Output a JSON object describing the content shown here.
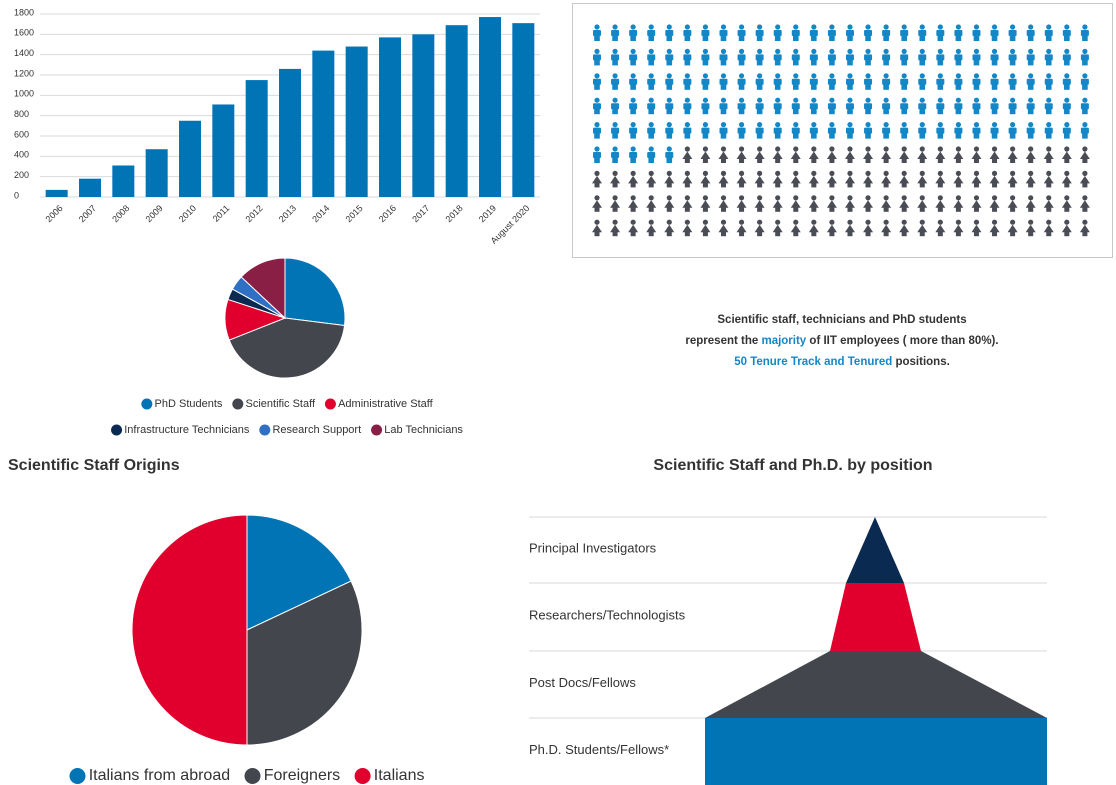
{
  "chart_data": [
    {
      "type": "bar",
      "categories": [
        "2006",
        "2007",
        "2008",
        "2009",
        "2010",
        "2011",
        "2012",
        "2013",
        "2014",
        "2015",
        "2016",
        "2017",
        "2018",
        "2019",
        "August 2020"
      ],
      "values": [
        70,
        180,
        310,
        470,
        750,
        910,
        1150,
        1260,
        1440,
        1480,
        1570,
        1600,
        1690,
        1770,
        1710
      ],
      "color": "#0074b5",
      "ylim": [
        0,
        1800
      ],
      "yticks": [
        0,
        200,
        400,
        600,
        800,
        1000,
        1200,
        1400,
        1600,
        1800
      ],
      "grid": true
    },
    {
      "type": "pictogram",
      "values": [
        145,
        107
      ],
      "colors": [
        "#1487c7",
        "#4a4d55"
      ]
    },
    {
      "type": "pie",
      "categories": [
        "PhD Students",
        "Scientific Staff",
        "Administrative Staff",
        "Infrastructure Technicians",
        "Research Support",
        "Lab Technicians"
      ],
      "values": [
        27,
        42,
        11,
        3,
        4,
        13
      ],
      "colors": [
        "#0074b5",
        "#43464d",
        "#e1002d",
        "#0b2a52",
        "#2f6fc4",
        "#8a1f45"
      ]
    },
    {
      "type": "pie",
      "title": "Scientific Staff Origins",
      "categories": [
        "Italians from abroad",
        "Foreigners",
        "Italians"
      ],
      "values": [
        18,
        32,
        50
      ],
      "colors": [
        "#0074b5",
        "#43464d",
        "#e1002d"
      ]
    },
    {
      "type": "pyramid",
      "title": "Scientific Staff and Ph.D. by position",
      "categories": [
        "Principal Investigators",
        "Researchers/Technologists",
        "Post Docs/Fellows",
        "Ph.D. Students/Fellows*"
      ],
      "colors": [
        "#0b2a52",
        "#e1002d",
        "#43464d",
        "#0074b5"
      ]
    }
  ],
  "note": {
    "lines": [
      [
        {
          "text": "Scientific staff, technicians and PhD students"
        }
      ],
      [
        {
          "text": "represent the "
        },
        {
          "text": "majority",
          "highlight": true
        },
        {
          "text": " of IIT employees ( more than 80%)."
        }
      ],
      [
        {
          "text": "50 Tenure Track and Tenured",
          "highlight": true
        },
        {
          "text": " positions."
        }
      ]
    ]
  }
}
